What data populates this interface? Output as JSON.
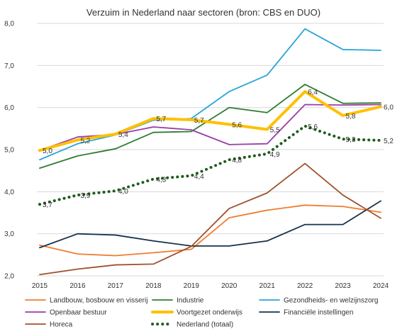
{
  "chart_data": {
    "type": "line",
    "title": "Verzuim in Nederland naar sectoren (bron: CBS en DUO)",
    "xlabel": "",
    "ylabel": "",
    "x": [
      "2015",
      "2016",
      "2017",
      "2018",
      "2019",
      "2020",
      "2021",
      "2022",
      "2023",
      "2024"
    ],
    "ylim": [
      2.0,
      8.0
    ],
    "yticks": [
      "2,0",
      "3,0",
      "4,0",
      "5,0",
      "6,0",
      "7,0",
      "8,0"
    ],
    "grid": "horizontal",
    "legend_position": "bottom",
    "series": [
      {
        "name": "Landbouw, bosbouw en visserij",
        "color": "#ed7d31",
        "style": "solid",
        "width": 1.8,
        "values": [
          2.73,
          2.52,
          2.48,
          2.55,
          2.63,
          3.38,
          3.56,
          3.68,
          3.65,
          3.51
        ]
      },
      {
        "name": "Industrie",
        "color": "#2e7d32",
        "style": "solid",
        "width": 1.8,
        "values": [
          4.56,
          4.85,
          5.02,
          5.41,
          5.43,
          6.0,
          5.88,
          6.55,
          6.1,
          6.11
        ]
      },
      {
        "name": "Gezondheids- en welzijnszorg",
        "color": "#2aa5d6",
        "style": "solid",
        "width": 1.8,
        "values": [
          4.76,
          5.14,
          5.35,
          5.7,
          5.74,
          6.38,
          6.77,
          7.87,
          7.38,
          7.36
        ]
      },
      {
        "name": "Openbaar bestuur",
        "color": "#9c3ca8",
        "style": "solid",
        "width": 1.8,
        "values": [
          4.98,
          5.3,
          5.36,
          5.54,
          5.47,
          5.12,
          5.14,
          6.07,
          6.06,
          6.07
        ]
      },
      {
        "name": "Voortgezet onderwijs",
        "color": "#ffc000",
        "style": "solid",
        "width": 4,
        "values": [
          4.98,
          5.23,
          5.37,
          5.74,
          5.71,
          5.6,
          5.48,
          6.38,
          5.81,
          6.02
        ],
        "labels": [
          "5,0",
          "5,2",
          "5,4",
          "5,7",
          "5,7",
          "5,6",
          "5,5",
          "6,4",
          "5,8",
          "6,0"
        ]
      },
      {
        "name": "Financiële instellingen",
        "color": "#17324d",
        "style": "solid",
        "width": 1.8,
        "values": [
          2.67,
          3.0,
          2.97,
          2.83,
          2.71,
          2.71,
          2.83,
          3.22,
          3.22,
          3.78
        ]
      },
      {
        "name": "Horeca",
        "color": "#a0522d",
        "style": "solid",
        "width": 1.8,
        "values": [
          2.03,
          2.16,
          2.26,
          2.28,
          2.7,
          3.6,
          3.97,
          4.67,
          3.92,
          3.37
        ]
      },
      {
        "name": "Nederland (totaal)",
        "color": "#1e5c1e",
        "style": "dotted",
        "width": 4,
        "values": [
          3.7,
          3.92,
          4.02,
          4.3,
          4.38,
          4.76,
          4.9,
          5.56,
          5.25,
          5.22
        ],
        "labels": [
          "3,7",
          "3,9",
          "4,0",
          "4,3",
          "4,4",
          "4,8",
          "4,9",
          "5,6",
          "5,3",
          "5,2"
        ]
      }
    ]
  }
}
